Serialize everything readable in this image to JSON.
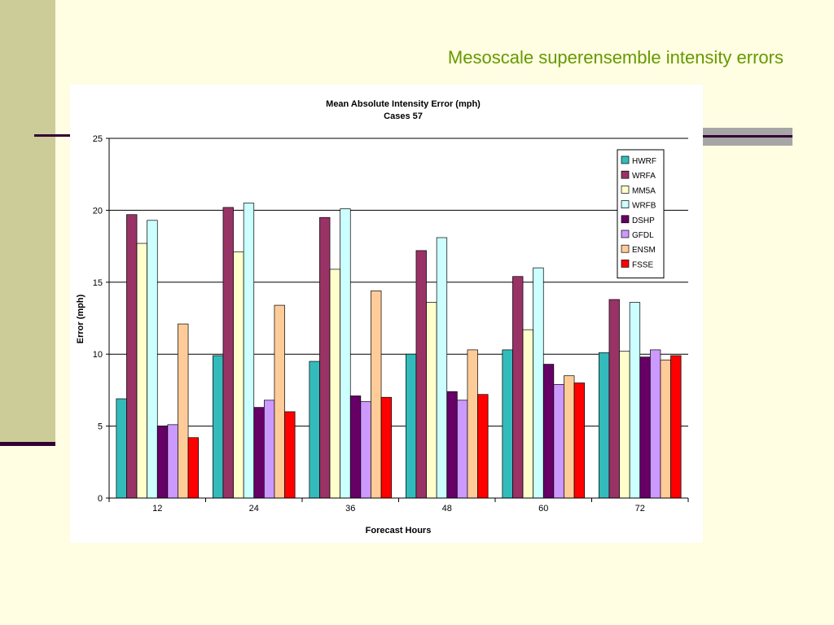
{
  "slide": {
    "title": "Mesoscale superensemble intensity errors"
  },
  "colors": {
    "background": "#FFFDE2",
    "sidebar": "#CCCC99",
    "accent_line": "#330033",
    "title": "#669900",
    "stripe": "#A6A6A6"
  },
  "chart_data": {
    "type": "bar",
    "title": "Mean Absolute Intensity Error (mph)",
    "subtitle": "Cases 57",
    "xlabel": "Forecast Hours",
    "ylabel": "Error (mph)",
    "ylim": [
      0,
      25
    ],
    "yticks": [
      0,
      5,
      10,
      15,
      20,
      25
    ],
    "grid": true,
    "legend_position": "top-right",
    "categories": [
      "12",
      "24",
      "36",
      "48",
      "60",
      "72"
    ],
    "series": [
      {
        "name": "HWRF",
        "color": "#33BBBB",
        "values": [
          6.9,
          9.9,
          9.5,
          10.0,
          10.3,
          10.1
        ]
      },
      {
        "name": "WRFA",
        "color": "#993366",
        "values": [
          19.7,
          20.2,
          19.5,
          17.2,
          15.4,
          13.8
        ]
      },
      {
        "name": "MM5A",
        "color": "#FFFFCC",
        "values": [
          17.7,
          17.1,
          15.9,
          13.6,
          11.7,
          10.2
        ]
      },
      {
        "name": "WRFB",
        "color": "#CCFFFF",
        "values": [
          19.3,
          20.5,
          20.1,
          18.1,
          16.0,
          13.6
        ]
      },
      {
        "name": "DSHP",
        "color": "#660066",
        "values": [
          5.0,
          6.3,
          7.1,
          7.4,
          9.3,
          9.8
        ]
      },
      {
        "name": "GFDL",
        "color": "#CC99FF",
        "values": [
          5.1,
          6.8,
          6.7,
          6.8,
          7.9,
          10.3
        ]
      },
      {
        "name": "ENSM",
        "color": "#FFCC99",
        "values": [
          12.1,
          13.4,
          14.4,
          10.3,
          8.5,
          9.6
        ]
      },
      {
        "name": "FSSE",
        "color": "#FF0000",
        "values": [
          4.2,
          6.0,
          7.0,
          7.2,
          8.0,
          9.9
        ]
      }
    ]
  }
}
